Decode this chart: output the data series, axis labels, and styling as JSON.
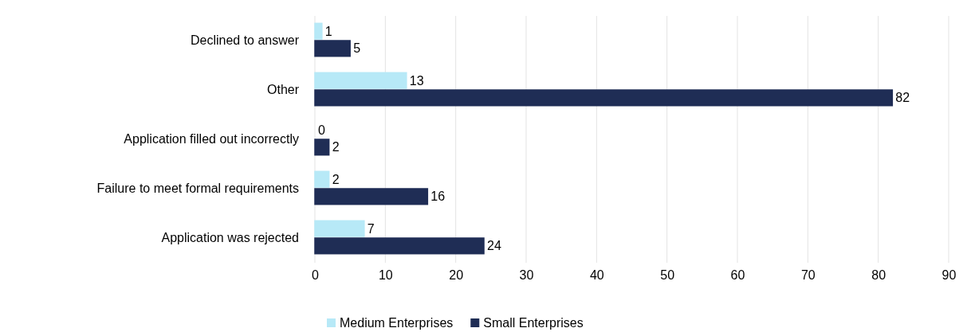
{
  "chart_data": {
    "type": "bar",
    "orientation": "horizontal",
    "categories": [
      "Declined to answer",
      "Other",
      "Application filled out incorrectly",
      "Failure to meet formal requirements",
      "Application was rejected"
    ],
    "series": [
      {
        "name": "Medium Enterprises",
        "color": "#b7e9f7",
        "values": [
          1,
          13,
          0,
          2,
          7
        ]
      },
      {
        "name": "Small Enterprises",
        "color": "#1f2d55",
        "values": [
          5,
          82,
          2,
          16,
          24
        ]
      }
    ],
    "xlim": [
      0,
      90
    ],
    "xticks": [
      0,
      10,
      20,
      30,
      40,
      50,
      60,
      70,
      80,
      90
    ],
    "grid": "x",
    "data_labels": true,
    "legend": "bottom"
  }
}
